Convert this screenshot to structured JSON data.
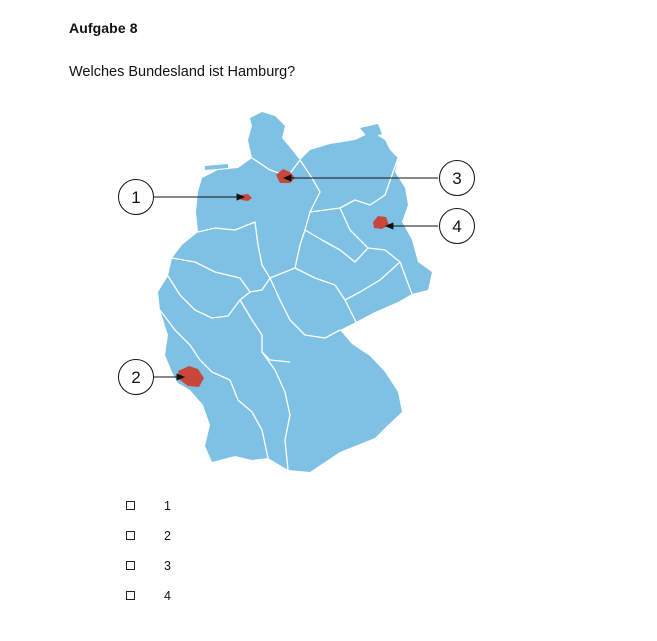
{
  "task": {
    "title": "Aufgabe 8",
    "question": "Welches Bundesland ist Hamburg?"
  },
  "map": {
    "land_color": "#7fc1e4",
    "border_color": "#ffffff",
    "highlight_color": "#c9473a",
    "markers": [
      {
        "label": "1"
      },
      {
        "label": "2"
      },
      {
        "label": "3"
      },
      {
        "label": "4"
      }
    ]
  },
  "options": [
    {
      "label": "1",
      "checked": false
    },
    {
      "label": "2",
      "checked": false
    },
    {
      "label": "3",
      "checked": false
    },
    {
      "label": "4",
      "checked": false
    }
  ]
}
